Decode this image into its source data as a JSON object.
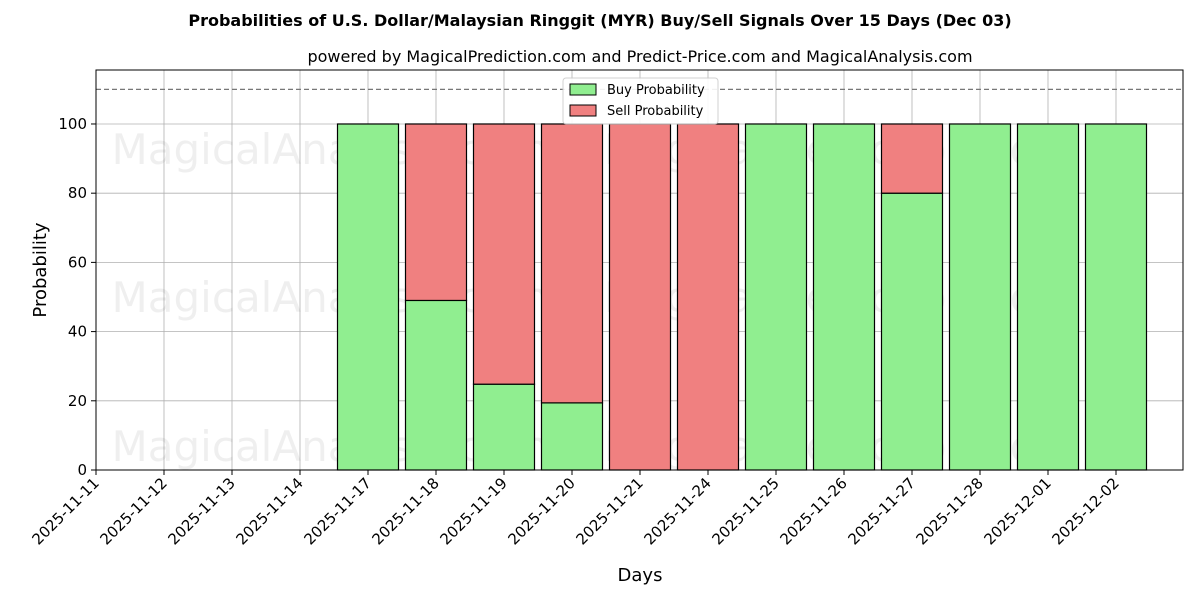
{
  "chart_data": {
    "type": "bar",
    "stacked": true,
    "title": "Probabilities of U.S. Dollar/Malaysian Ringgit (MYR) Buy/Sell Signals Over 15 Days (Dec 03)",
    "subtitle": "powered by MagicalPrediction.com and Predict-Price.com and MagicalAnalysis.com",
    "xlabel": "Days",
    "ylabel": "Probability",
    "ylim": [
      0,
      115.6
    ],
    "yticks": [
      0,
      20,
      40,
      60,
      80,
      100
    ],
    "reference_line": 110,
    "grid": true,
    "legend_placement": "top-center",
    "categories": [
      "2025-11-11",
      "2025-11-12",
      "2025-11-13",
      "2025-11-14",
      "2025-11-17",
      "2025-11-18",
      "2025-11-19",
      "2025-11-20",
      "2025-11-21",
      "2025-11-24",
      "2025-11-25",
      "2025-11-26",
      "2025-11-27",
      "2025-11-28",
      "2025-12-01",
      "2025-12-02"
    ],
    "series": [
      {
        "name": "Buy Probability",
        "color": "#90ee90",
        "values": [
          0,
          0,
          0,
          0,
          100,
          49,
          24.8,
          19.4,
          0,
          0,
          100,
          100,
          80,
          100,
          100,
          100
        ]
      },
      {
        "name": "Sell Probability",
        "color": "#f08080",
        "values": [
          0,
          0,
          0,
          0,
          0,
          51,
          75.2,
          80.6,
          100,
          100,
          0,
          0,
          20,
          0,
          0,
          0
        ]
      }
    ],
    "watermarks": [
      "MagicalAnalysis.com",
      "MagicalPrediction.com"
    ]
  }
}
